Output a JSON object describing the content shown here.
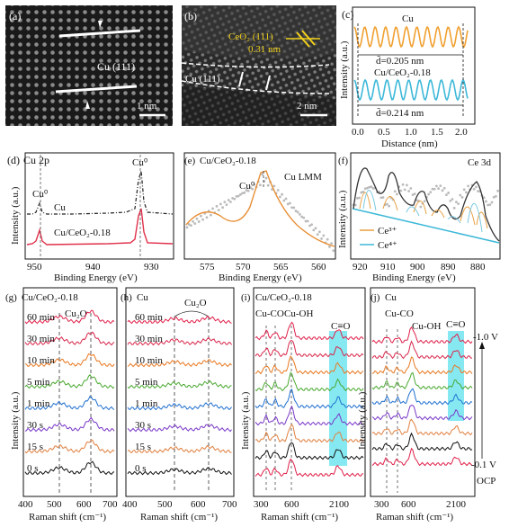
{
  "panel_a": {
    "letter": "(a)",
    "label": "Cu (111)",
    "scalebar": "1 nm"
  },
  "panel_b": {
    "letter": "(b)",
    "ceo2": "CeO₂ (111)",
    "ceo2_spacing": "0.31 nm",
    "cu": "Cu (111)",
    "scalebar": "2 nm"
  },
  "panel_c": {
    "letter": "(c)",
    "top_label": "Cu",
    "top_spacing": "d̄=0.205 nm",
    "bottom_label": "Cu/CeO₂-0.18",
    "bottom_spacing": "d̄=0.214 nm",
    "ylabel": "Intensity (a.u.)",
    "xlabel": "Distance (nm)",
    "xticks": [
      "0.0",
      "0.5",
      "1.0",
      "1.5",
      "2.0"
    ],
    "colors": {
      "top": "#f0a030",
      "bottom": "#3cb8d8"
    }
  },
  "panel_d": {
    "letter": "(d)",
    "title": "Cu 2p",
    "cu0_left": "Cu⁰",
    "cu0_right": "Cu⁰",
    "series_top": "Cu",
    "series_bottom": "Cu/CeO₂-0.18",
    "ylabel": "Intensity (a.u.)",
    "xlabel": "Binding Energy (eV)",
    "xticks": [
      "950",
      "940",
      "930"
    ]
  },
  "panel_e": {
    "letter": "(e)",
    "title": "Cu/CeO₂-0.18",
    "subtitle": "Cu LMM",
    "peak": "Cu⁰",
    "xlabel": "Binding Energy (eV)",
    "xticks": [
      "575",
      "570",
      "565",
      "560"
    ]
  },
  "panel_f": {
    "letter": "(f)",
    "title": "Ce 3d",
    "legend": [
      "Ce³⁺",
      "Ce⁴⁺"
    ],
    "ylabel": "Intensity (a.u.)",
    "xlabel": "Binding Energy (eV)",
    "xticks": [
      "920",
      "910",
      "900",
      "890",
      "880"
    ]
  },
  "panel_g": {
    "letter": "(g)",
    "title": "Cu/CeO₂-0.18",
    "peak": "Cu₂O",
    "times": [
      "60 min",
      "30 min",
      "10 min",
      "5 min",
      "1 min",
      "30 s",
      "15 s",
      "0 s"
    ],
    "ylabel": "Intensity (a.u.)",
    "xlabel": "Raman shift (cm⁻¹)",
    "xticks": [
      "400",
      "500",
      "600",
      "700"
    ]
  },
  "panel_h": {
    "letter": "(h)",
    "title": "Cu",
    "peak": "Cu₂O",
    "times": [
      "60 min",
      "30 min",
      "10 min",
      "5 min",
      "1 min",
      "30 s",
      "15 s",
      "0 s"
    ],
    "xlabel": "Raman shift (cm⁻¹)",
    "xticks": [
      "400",
      "500",
      "600",
      "700"
    ]
  },
  "panel_i": {
    "letter": "(i)",
    "title": "Cu/CeO₂-0.18",
    "cuco": "Cu-CO",
    "cuoh": "Cu-OH",
    "co": "C≡O",
    "ylabel": "Intensity (a.u.)",
    "xlabel": "Raman shift (cm⁻¹)",
    "xticks": [
      "300",
      "600",
      "2100"
    ]
  },
  "panel_j": {
    "letter": "(j)",
    "title": "Cu",
    "cuco": "Cu-CO",
    "cuoh": "Cu-OH",
    "co": "C≡O",
    "ylabel": "Intensity (a.u.)",
    "xlabel": "Raman shift (cm⁻¹)",
    "xticks": [
      "300",
      "600",
      "2100"
    ],
    "v_top": "-1.0 V",
    "v_mid": "-0.1 V",
    "v_bottom": "OCP"
  },
  "series_colors": [
    "#e0204a",
    "#d8284c",
    "#e87820",
    "#4aa830",
    "#2070d0",
    "#7a38c8",
    "#e08040",
    "#111111"
  ]
}
